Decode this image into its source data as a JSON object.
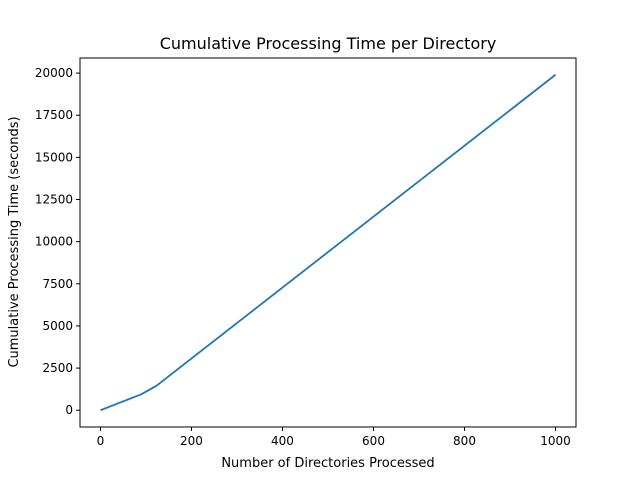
{
  "chart_data": {
    "type": "line",
    "title": "Cumulative Processing Time per Directory",
    "xlabel": "Number of Directories Processed",
    "ylabel": "Cumulative Processing Time (seconds)",
    "xlim": [
      -45,
      1045
    ],
    "ylim": [
      -995,
      20895
    ],
    "xticks": [
      0,
      200,
      400,
      600,
      800,
      1000
    ],
    "yticks": [
      0,
      2500,
      5000,
      7500,
      10000,
      12500,
      15000,
      17500,
      20000
    ],
    "grid": false,
    "series": [
      {
        "color": "#1f77b4",
        "x": [
          0,
          90,
          123,
          1000
        ],
        "y": [
          0,
          950,
          1450,
          19900
        ]
      }
    ]
  }
}
